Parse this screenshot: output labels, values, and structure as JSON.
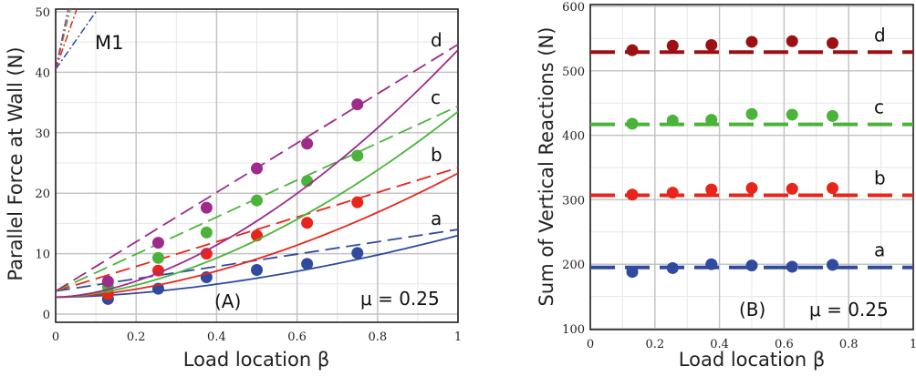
{
  "chart_data": [
    {
      "type": "line",
      "panel_label": "(A)",
      "annotation": "μ = 0.25",
      "model_label": "M1",
      "xlabel": "Load location β",
      "ylabel": "Parallel Force at Wall (N)",
      "xlim": [
        0,
        1
      ],
      "ylim": [
        0,
        50
      ],
      "xticks": [
        "0",
        "0.2",
        "0.4",
        "0.6",
        "0.8",
        "1"
      ],
      "yticks": [
        "0",
        "10",
        "20",
        "30",
        "40",
        "50"
      ],
      "grid": true,
      "points_x": [
        0.13,
        0.255,
        0.375,
        0.5,
        0.625,
        0.75
      ],
      "series": [
        {
          "name": "a",
          "color": "#2f4a9e",
          "points": [
            2.5,
            4.2,
            6.1,
            7.3,
            8.3,
            10.1
          ],
          "dashed_line": [
            3.8,
            14.0
          ],
          "solid_curve": [
            2.8,
            13.0
          ],
          "m1_line": {
            "y0": 40.5,
            "x_at_50": 0.1
          }
        },
        {
          "name": "b",
          "color": "#e8251a",
          "points": [
            3.3,
            7.2,
            10.0,
            13.0,
            15.1,
            18.5
          ],
          "dashed_line": [
            3.8,
            24.2
          ],
          "solid_curve": [
            2.8,
            23.3
          ],
          "m1_line": {
            "y0": 40.5,
            "x_at_50": 0.05
          }
        },
        {
          "name": "c",
          "color": "#4bb33a",
          "points": [
            4.5,
            9.3,
            13.5,
            18.8,
            22.0,
            26.2
          ],
          "dashed_line": [
            3.8,
            34.4
          ],
          "solid_curve": [
            2.8,
            33.5
          ],
          "m1_line": {
            "y0": 40.5,
            "x_at_50": 0.035
          }
        },
        {
          "name": "d",
          "color": "#9e2a8a",
          "points": [
            5.4,
            11.8,
            17.6,
            24.1,
            28.2,
            34.7
          ],
          "dashed_line": [
            3.8,
            44.6
          ],
          "solid_curve": [
            2.8,
            43.7
          ],
          "m1_line": {
            "y0": 40.5,
            "x_at_50": 0.03
          }
        }
      ]
    },
    {
      "type": "scatter",
      "panel_label": "(B)",
      "annotation": "μ = 0.25",
      "xlabel": "Load location β",
      "ylabel": "Sum of Vertical Reactions (N)",
      "xlim": [
        0,
        1
      ],
      "ylim": [
        100,
        600
      ],
      "xticks": [
        "0",
        "0.2",
        "0.4",
        "0.6",
        "0.8",
        "1"
      ],
      "yticks": [
        "100",
        "200",
        "300",
        "400",
        "500",
        "600"
      ],
      "grid": true,
      "points_x": [
        0.13,
        0.255,
        0.375,
        0.5,
        0.625,
        0.75
      ],
      "series": [
        {
          "name": "a",
          "color": "#2f4a9e",
          "points": [
            188,
            194,
            200,
            198,
            196,
            199
          ],
          "dashed_level": 195
        },
        {
          "name": "b",
          "color": "#e8251a",
          "points": [
            308,
            311,
            316,
            318,
            317,
            318
          ],
          "dashed_level": 307
        },
        {
          "name": "c",
          "color": "#4bb33a",
          "points": [
            418,
            423,
            424,
            433,
            432,
            430
          ],
          "dashed_level": 417
        },
        {
          "name": "d",
          "color": "#9b1015",
          "points": [
            532,
            539,
            540,
            545,
            546,
            543
          ],
          "dashed_level": 529
        }
      ]
    }
  ]
}
